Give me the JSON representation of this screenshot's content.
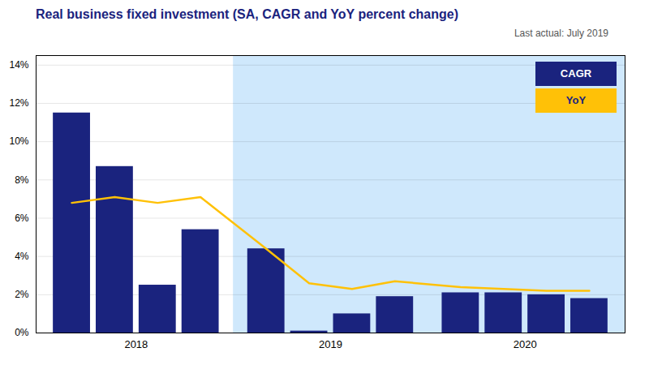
{
  "chart_data": {
    "type": "bar",
    "title": "Real business fixed investment (SA, CAGR and YoY percent change)",
    "annotation": "Last actual: July 2019",
    "categories": [
      "2018",
      null,
      null,
      null,
      "2019",
      null,
      null,
      null,
      "2020",
      null,
      null,
      null
    ],
    "series": [
      {
        "name": "CAGR",
        "type": "bar",
        "color": "#1a237e",
        "values": [
          11.5,
          8.7,
          2.5,
          5.4,
          4.4,
          0.1,
          1.0,
          1.9,
          2.1,
          2.1,
          2.0,
          1.8
        ]
      },
      {
        "name": "YoY",
        "type": "line",
        "color": "#FFC107",
        "values": [
          6.8,
          7.1,
          6.8,
          7.1,
          4.4,
          2.6,
          2.3,
          2.7,
          2.4,
          2.3,
          2.2,
          2.2
        ]
      }
    ],
    "ylim": [
      0,
      14.5
    ],
    "yticks": [
      {
        "value": 0,
        "label": "0%"
      },
      {
        "value": 2,
        "label": "2%"
      },
      {
        "value": 4,
        "label": "4%"
      },
      {
        "value": 6,
        "label": "6%"
      },
      {
        "value": 8,
        "label": "8%"
      },
      {
        "value": 10,
        "label": "10%"
      },
      {
        "value": 12,
        "label": "12%"
      },
      {
        "value": 14,
        "label": "14%"
      }
    ],
    "grid": true,
    "legend": "upper right",
    "forecast_start": 4,
    "forecast_color": "#BBDEFB"
  }
}
